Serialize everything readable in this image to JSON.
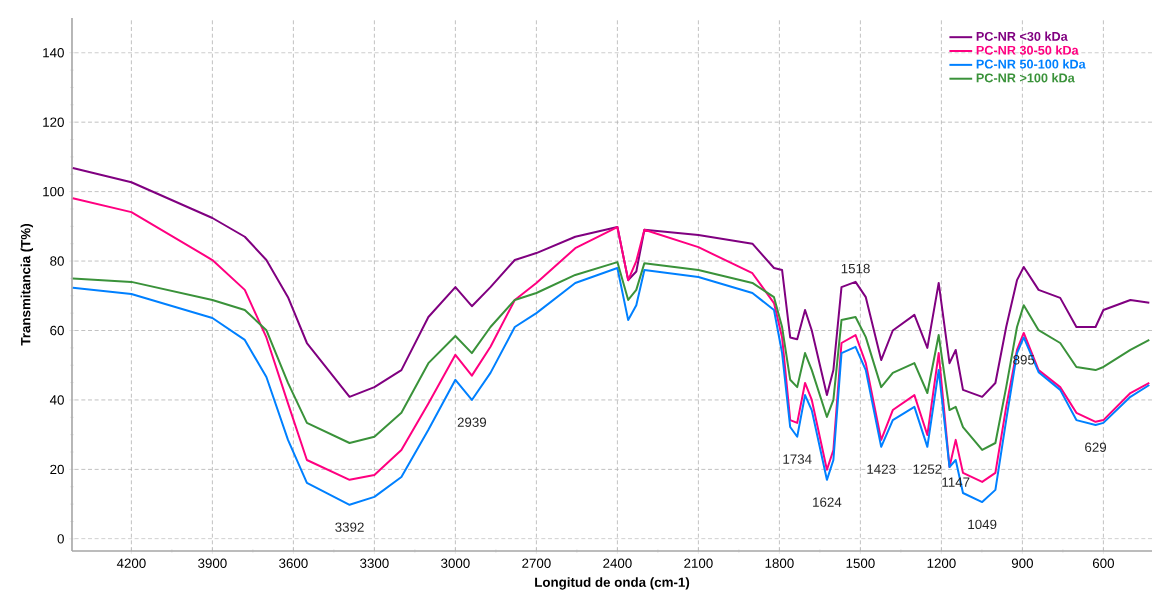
{
  "chart_data": {
    "type": "line",
    "xlabel": "Longitud de onda (cm-1)",
    "ylabel": "Transmitancia (T%)",
    "x": [
      4417,
      4200,
      3900,
      3780,
      3700,
      3620,
      3550,
      3392,
      3300,
      3200,
      3100,
      3000,
      2939,
      2870,
      2780,
      2700,
      2556,
      2400,
      2360,
      2330,
      2300,
      2100,
      1900,
      1820,
      1790,
      1760,
      1734,
      1705,
      1680,
      1624,
      1600,
      1570,
      1518,
      1480,
      1423,
      1380,
      1300,
      1252,
      1210,
      1170,
      1147,
      1120,
      1049,
      1000,
      960,
      920,
      895,
      840,
      760,
      700,
      629,
      600,
      500,
      430
    ],
    "series": [
      {
        "name": "PC-NR <30 kDa",
        "color": "#800080",
        "values": [
          106.8,
          102.7,
          92.4,
          87,
          80.3,
          69.6,
          56.4,
          40.9,
          43.7,
          48.6,
          63.9,
          72.5,
          67,
          72.5,
          80.3,
          82.3,
          87,
          89.8,
          74.5,
          77,
          89,
          87.5,
          85,
          78,
          77.4,
          58,
          57.5,
          65.9,
          60,
          41.4,
          48.6,
          72.5,
          74,
          69.6,
          51.5,
          60,
          64.5,
          55,
          73.7,
          50.6,
          54.4,
          42.9,
          40.9,
          44.9,
          61,
          74.5,
          78.3,
          71.7,
          69.4,
          61,
          61,
          65.9,
          68.8,
          68
        ]
      },
      {
        "name": "PC-NR 30-50 kDa",
        "color": "#ff0080",
        "values": [
          98.1,
          94.1,
          80.3,
          71.7,
          58,
          39,
          22.7,
          17,
          18.4,
          25.6,
          39,
          53,
          47,
          55.3,
          68.8,
          73.7,
          83.7,
          89.8,
          74.5,
          80,
          89,
          84,
          76.5,
          67.9,
          58,
          34.2,
          33.4,
          44.9,
          40,
          19.9,
          25.6,
          56.4,
          58.7,
          50.6,
          28.5,
          37.1,
          41.4,
          29.9,
          53.5,
          20.7,
          28.5,
          19,
          16.4,
          19,
          38,
          54.4,
          59.3,
          48.6,
          43.7,
          36.3,
          33.7,
          34.2,
          42,
          44.9
        ]
      },
      {
        "name": "PC-NR 50-100 kDa",
        "color": "#0080ff",
        "values": [
          72.3,
          70.5,
          63.6,
          57.3,
          46.6,
          28.5,
          16.1,
          9.8,
          12.1,
          17.8,
          31.4,
          45.8,
          40,
          47.8,
          61,
          65,
          73.7,
          78,
          63,
          67.3,
          77.4,
          75.4,
          70.8,
          65.9,
          53.5,
          32.2,
          29.4,
          41.4,
          37,
          17,
          22.7,
          53.5,
          55.3,
          48.6,
          26.5,
          34.2,
          38,
          26.5,
          48.6,
          20.7,
          22.7,
          13.2,
          10.6,
          14.1,
          34.2,
          53.5,
          58,
          48,
          42.9,
          34.2,
          32.8,
          33.4,
          40.9,
          44.3
        ]
      },
      {
        "name": "PC-NR >100 kDa",
        "color": "#3a923a",
        "values": [
          75,
          74,
          68.8,
          65.9,
          60.1,
          44.9,
          33.4,
          27.6,
          29.4,
          36.3,
          50.6,
          58.4,
          53.5,
          61,
          68.8,
          70.8,
          76,
          79.7,
          68.8,
          71.7,
          79.4,
          77.4,
          73.7,
          69.6,
          61,
          45.8,
          43.7,
          53.5,
          48.6,
          35.1,
          40,
          63,
          63.9,
          58.1,
          43.7,
          47.8,
          50.6,
          42,
          58.7,
          37.1,
          38,
          32.2,
          25.6,
          27.6,
          43.7,
          61,
          67.3,
          60.1,
          56.4,
          49.5,
          48.6,
          49.5,
          54.4,
          57.3
        ]
      }
    ],
    "xlim": [
      4420,
      420
    ],
    "ylim": [
      -3.5,
      150
    ],
    "xticks": [
      4200,
      3900,
      3600,
      3300,
      3000,
      2700,
      2400,
      2100,
      1800,
      1500,
      1200,
      900,
      600
    ],
    "yticks": [
      0,
      20,
      40,
      60,
      80,
      100,
      120,
      140
    ],
    "grid": true,
    "legend": "top right",
    "marker": "none",
    "line_style": "solid",
    "annotations": [
      {
        "text": "3392",
        "x": 3392,
        "y": 9.8
      },
      {
        "text": "2939",
        "x": 2939,
        "y": 40
      },
      {
        "text": "1734",
        "x": 1734,
        "y": 29.4
      },
      {
        "text": "1624",
        "x": 1624,
        "y": 17
      },
      {
        "text": "1518",
        "x": 1518,
        "y": 74
      },
      {
        "text": "1423",
        "x": 1423,
        "y": 26.5
      },
      {
        "text": "1252",
        "x": 1252,
        "y": 26.5
      },
      {
        "text": "1147",
        "x": 1147,
        "y": 22.7
      },
      {
        "text": "1049",
        "x": 1049,
        "y": 10.6
      },
      {
        "text": "895",
        "x": 895,
        "y": 58
      },
      {
        "text": "629",
        "x": 629,
        "y": 32.8
      }
    ]
  }
}
